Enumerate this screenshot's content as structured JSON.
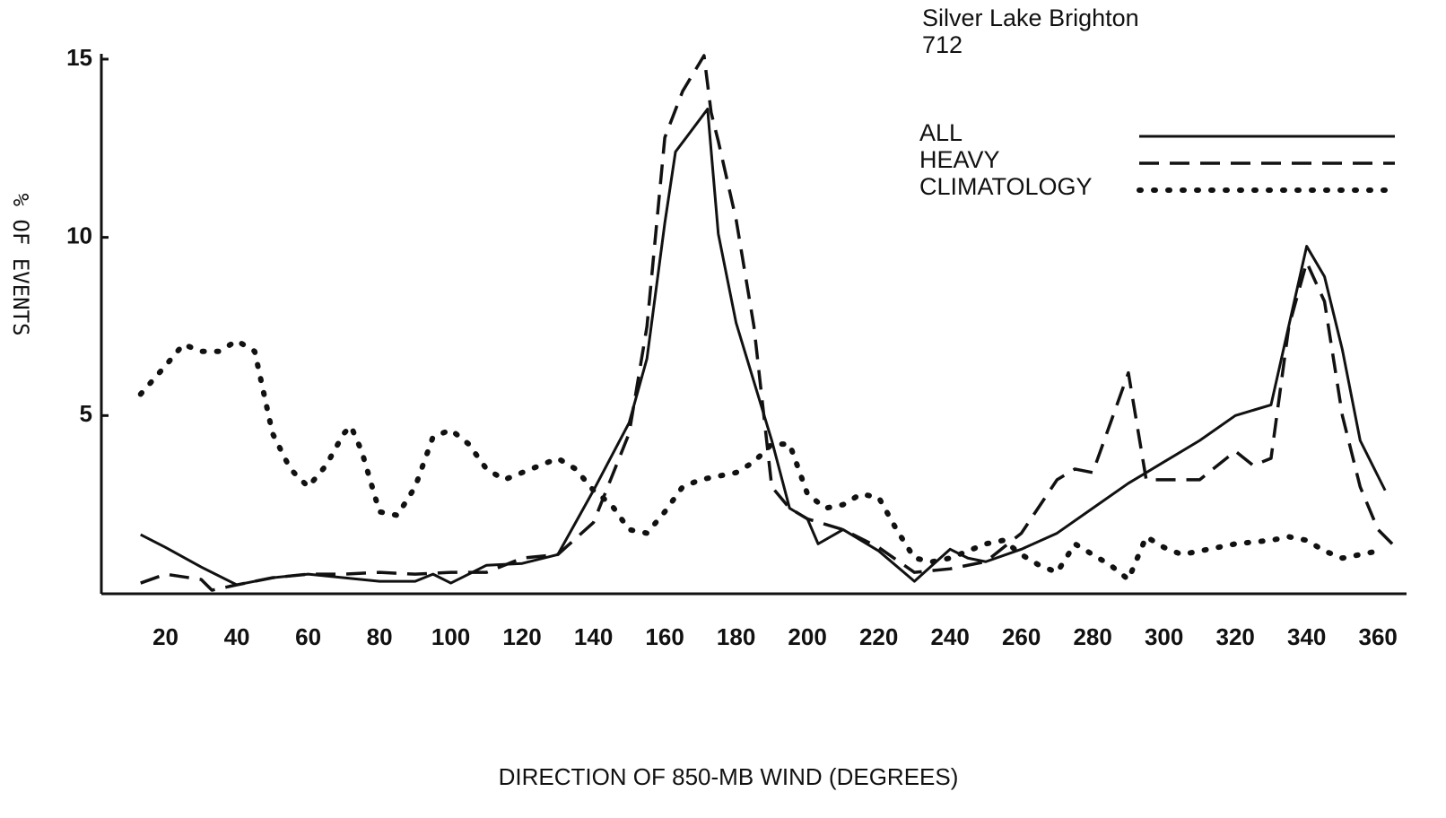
{
  "chart_data": {
    "type": "line",
    "title": "Silver Lake Brighton",
    "subtitle": "712",
    "x_label": "DIRECTION OF 850-MB WIND  (DEGREES)",
    "y_label": "% OF EVENTS",
    "xlim": [
      2,
      368
    ],
    "ylim": [
      0,
      15.2
    ],
    "xticks": [
      20,
      40,
      60,
      80,
      100,
      120,
      140,
      160,
      180,
      200,
      220,
      240,
      260,
      280,
      300,
      320,
      340,
      360
    ],
    "yticks": [
      5,
      10,
      15
    ],
    "grid": false,
    "legend": "top-right",
    "series": [
      {
        "name": "ALL",
        "color": "#111111",
        "style": "solid",
        "x": [
          13,
          20,
          30,
          40,
          50,
          60,
          70,
          80,
          90,
          95,
          100,
          110,
          120,
          130,
          140,
          150,
          155,
          160,
          163,
          172,
          175,
          180,
          190,
          195,
          200,
          203,
          210,
          220,
          230,
          240,
          245,
          250,
          260,
          270,
          280,
          290,
          300,
          310,
          320,
          330,
          340,
          345,
          350,
          355,
          362
        ],
        "values": [
          1.66,
          1.3,
          0.75,
          0.25,
          0.45,
          0.55,
          0.45,
          0.35,
          0.35,
          0.55,
          0.3,
          0.8,
          0.85,
          1.1,
          2.9,
          4.8,
          6.6,
          10.4,
          12.4,
          13.6,
          10.1,
          7.6,
          4.3,
          2.4,
          2.1,
          1.4,
          1.8,
          1.2,
          0.35,
          1.25,
          1.0,
          0.9,
          1.25,
          1.7,
          2.4,
          3.1,
          3.7,
          4.3,
          5.0,
          5.3,
          9.75,
          8.9,
          6.85,
          4.3,
          2.9
        ]
      },
      {
        "name": "HEAVY",
        "color": "#111111",
        "style": "dashed",
        "x": [
          13,
          20,
          30,
          33,
          40,
          50,
          60,
          70,
          80,
          90,
          100,
          110,
          120,
          130,
          140,
          150,
          155,
          160,
          165,
          171,
          173,
          175,
          180,
          185,
          190,
          195,
          200,
          210,
          220,
          230,
          240,
          250,
          260,
          270,
          275,
          280,
          290,
          295,
          300,
          310,
          320,
          325,
          330,
          335,
          340,
          345,
          350,
          355,
          360,
          364
        ],
        "values": [
          0.3,
          0.55,
          0.4,
          0.1,
          0.25,
          0.45,
          0.55,
          0.55,
          0.6,
          0.55,
          0.6,
          0.6,
          1.0,
          1.1,
          2.0,
          4.5,
          7.5,
          12.8,
          14.1,
          15.1,
          13.5,
          12.7,
          10.5,
          7.5,
          3.0,
          2.4,
          2.1,
          1.8,
          1.3,
          0.6,
          0.7,
          0.9,
          1.7,
          3.2,
          3.5,
          3.4,
          6.2,
          3.2,
          3.2,
          3.2,
          4.0,
          3.6,
          3.8,
          7.5,
          9.3,
          8.2,
          5.0,
          3.0,
          1.8,
          1.4
        ]
      },
      {
        "name": "CLIMATOLOGY",
        "color": "#111111",
        "style": "dotted",
        "x": [
          13,
          20,
          25,
          30,
          35,
          40,
          45,
          50,
          55,
          60,
          65,
          70,
          72,
          75,
          80,
          85,
          90,
          95,
          100,
          105,
          110,
          115,
          120,
          125,
          130,
          135,
          140,
          145,
          150,
          155,
          160,
          165,
          170,
          175,
          180,
          185,
          190,
          195,
          200,
          205,
          210,
          215,
          220,
          225,
          230,
          235,
          240,
          250,
          255,
          260,
          265,
          270,
          275,
          280,
          285,
          290,
          295,
          300,
          305,
          310,
          315,
          320,
          330,
          335,
          340,
          345,
          350,
          355,
          360
        ],
        "values": [
          5.6,
          6.4,
          7.0,
          6.8,
          6.8,
          7.1,
          6.8,
          4.5,
          3.5,
          3.0,
          3.6,
          4.5,
          4.7,
          4.0,
          2.3,
          2.2,
          3.0,
          4.4,
          4.6,
          4.2,
          3.5,
          3.2,
          3.4,
          3.6,
          3.8,
          3.5,
          2.9,
          2.5,
          1.8,
          1.7,
          2.3,
          3.0,
          3.2,
          3.3,
          3.4,
          3.7,
          4.2,
          4.2,
          2.8,
          2.4,
          2.5,
          2.8,
          2.7,
          1.8,
          1.0,
          0.9,
          1.0,
          1.4,
          1.5,
          1.1,
          0.8,
          0.6,
          1.4,
          1.1,
          0.8,
          0.4,
          1.6,
          1.3,
          1.1,
          1.2,
          1.3,
          1.4,
          1.5,
          1.6,
          1.5,
          1.2,
          1.0,
          1.1,
          1.2
        ]
      }
    ]
  }
}
